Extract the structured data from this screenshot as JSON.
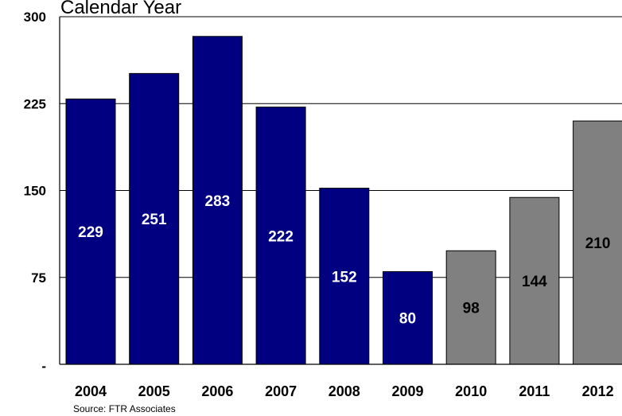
{
  "chart_data": {
    "type": "bar",
    "title": "Calendar Year",
    "categories": [
      "2004",
      "2005",
      "2006",
      "2007",
      "2008",
      "2009",
      "2010",
      "2011",
      "2012"
    ],
    "values": [
      229,
      251,
      283,
      222,
      152,
      80,
      98,
      144,
      210
    ],
    "data_labels": [
      "229",
      "251",
      "283",
      "222",
      "152",
      "80",
      "98",
      "144",
      "210"
    ],
    "bar_colors": [
      "#000080",
      "#000080",
      "#000080",
      "#000080",
      "#000080",
      "#000080",
      "#808080",
      "#808080",
      "#808080"
    ],
    "label_colors": [
      "#ffffff",
      "#ffffff",
      "#ffffff",
      "#ffffff",
      "#ffffff",
      "#ffffff",
      "#000000",
      "#000000",
      "#000000"
    ],
    "ylim": [
      0,
      300
    ],
    "yticks": [
      0,
      75,
      150,
      225,
      300
    ],
    "ytick_labels": [
      "-",
      "75",
      "150",
      "225",
      "300"
    ],
    "grid": true,
    "source": "Source: FTR Associates"
  }
}
